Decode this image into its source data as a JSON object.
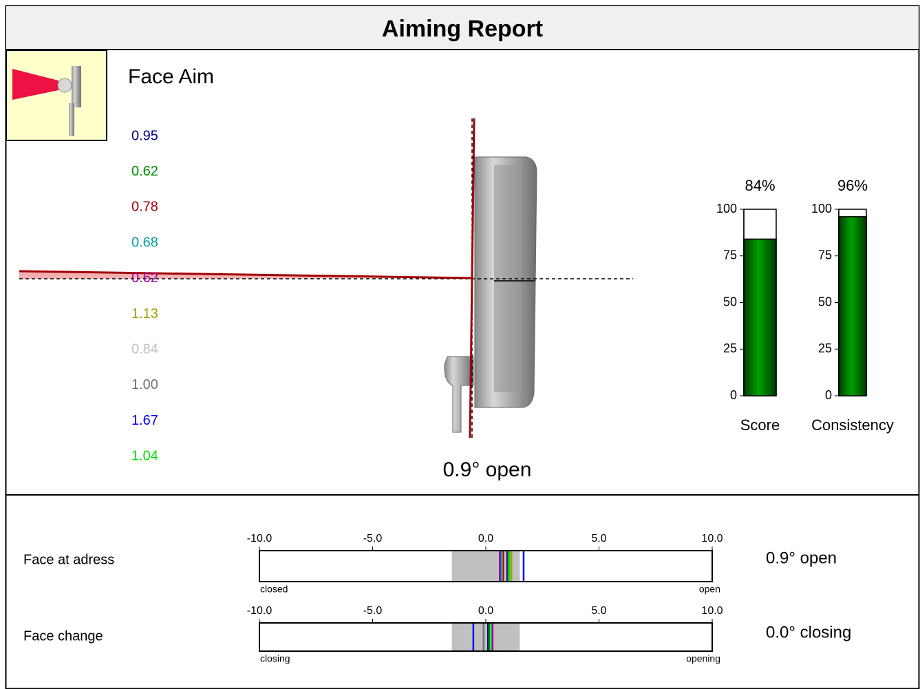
{
  "header": {
    "title": "Aiming Report"
  },
  "face_aim": {
    "title": "Face Aim",
    "result": "0.9° open",
    "readings": [
      {
        "value": 0.95,
        "label": "0.95",
        "color": "#00008b"
      },
      {
        "value": 0.62,
        "label": "0.62",
        "color": "#008b00"
      },
      {
        "value": 0.78,
        "label": "0.78",
        "color": "#a00000"
      },
      {
        "value": 0.68,
        "label": "0.68",
        "color": "#00a0a0"
      },
      {
        "value": 0.62,
        "label": "0.62",
        "color": "#a000a0"
      },
      {
        "value": 1.13,
        "label": "1.13",
        "color": "#a0a000"
      },
      {
        "value": 0.84,
        "label": "0.84",
        "color": "#c0c0c0"
      },
      {
        "value": 1.0,
        "label": "1.00",
        "color": "#707070"
      },
      {
        "value": 1.67,
        "label": "1.67",
        "color": "#0000ff"
      },
      {
        "value": 1.04,
        "label": "1.04",
        "color": "#00e000"
      }
    ]
  },
  "gauges": {
    "ylim": [
      0,
      100
    ],
    "yticks": [
      0,
      25,
      50,
      75,
      100
    ],
    "color": "#007000",
    "items": [
      {
        "name": "Score",
        "value": 84,
        "value_label": "84%"
      },
      {
        "name": "Consistency",
        "value": 96,
        "value_label": "96%"
      }
    ]
  },
  "strips": {
    "xlim": [
      -10,
      10
    ],
    "band": [
      -1.5,
      1.5
    ],
    "xticks": [
      {
        "value": -10,
        "label": "-10.0"
      },
      {
        "value": -5,
        "label": "-5.0"
      },
      {
        "value": 0,
        "label": "0.0"
      },
      {
        "value": 5,
        "label": "5.0"
      },
      {
        "value": 10,
        "label": "10.0"
      }
    ],
    "rows": [
      {
        "name": "Face at adress",
        "left": "closed",
        "right": "open",
        "result": "0.9° open"
      },
      {
        "name": "Face change",
        "left": "closing",
        "right": "opening",
        "result": "0.0° closing",
        "marks": [
          {
            "value": -0.55,
            "color": "#0000ff"
          },
          {
            "value": -0.1,
            "color": "#707070"
          },
          {
            "value": 0.1,
            "color": "#00008b"
          },
          {
            "value": 0.15,
            "color": "#008b00"
          },
          {
            "value": 0.25,
            "color": "#00e000"
          },
          {
            "value": 0.3,
            "color": "#a000a0"
          }
        ]
      }
    ]
  }
}
